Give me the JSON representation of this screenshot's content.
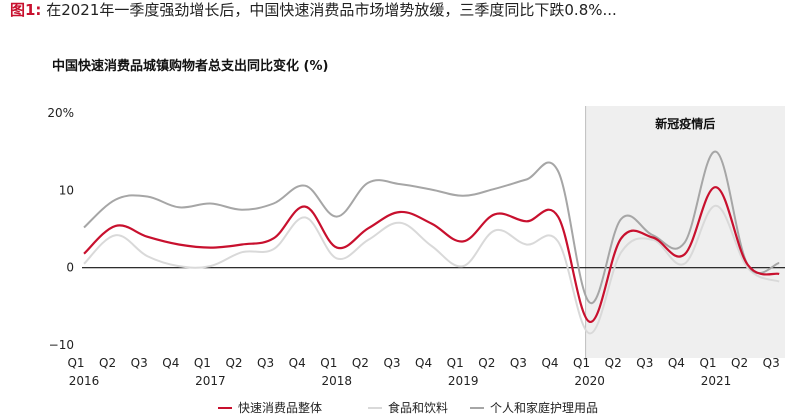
{
  "figure": {
    "label": "图1:",
    "text": " 在2021年一季度强劲增长后，中国快速消费品市场增势放缓，三季度同比下跌0.8%..."
  },
  "chart_data": {
    "type": "line",
    "title": "中国快速消费品城镇购物者总支出同比变化 (%)",
    "xlabel": "",
    "ylabel": "",
    "ylim": [
      -10,
      20
    ],
    "yticks": [
      {
        "value": 20,
        "label": "20%"
      },
      {
        "value": 10,
        "label": "10"
      },
      {
        "value": 0,
        "label": "0"
      },
      {
        "value": -10,
        "label": "−10"
      }
    ],
    "categories": [
      "Q1",
      "Q2",
      "Q3",
      "Q4",
      "Q1",
      "Q2",
      "Q3",
      "Q4",
      "Q1",
      "Q2",
      "Q3",
      "Q4",
      "Q1",
      "Q2",
      "Q3",
      "Q4",
      "Q1",
      "Q2",
      "Q3",
      "Q4",
      "Q1",
      "Q2",
      "Q3"
    ],
    "years": [
      {
        "label": "2016",
        "index": 0
      },
      {
        "label": "2017",
        "index": 4
      },
      {
        "label": "2018",
        "index": 8
      },
      {
        "label": "2019",
        "index": 12
      },
      {
        "label": "2020",
        "index": 16
      },
      {
        "label": "2021",
        "index": 20
      }
    ],
    "series": [
      {
        "name": "快速消费品整体",
        "color": "#c8102e",
        "values": [
          1.8,
          5.4,
          4.0,
          3.0,
          2.6,
          3.0,
          3.8,
          7.9,
          2.6,
          5.1,
          7.2,
          5.7,
          3.4,
          6.9,
          6.0,
          6.6,
          -7.0,
          3.8,
          3.9,
          1.7,
          10.4,
          0.4,
          -0.8
        ]
      },
      {
        "name": "食品和饮料",
        "color": "#d9d9d9",
        "values": [
          0.5,
          4.2,
          1.5,
          0.2,
          0.2,
          2.0,
          2.4,
          6.5,
          1.2,
          3.6,
          5.8,
          2.8,
          0.2,
          4.8,
          3.0,
          3.4,
          -8.5,
          2.0,
          3.6,
          0.5,
          8.0,
          0.0,
          -1.8
        ]
      },
      {
        "name": "个人和家庭护理用品",
        "color": "#a6a6a6",
        "values": [
          5.2,
          8.8,
          9.2,
          7.8,
          8.3,
          7.5,
          8.3,
          10.6,
          6.6,
          11.0,
          10.8,
          10.1,
          9.3,
          10.2,
          11.4,
          12.5,
          -4.5,
          6.3,
          4.2,
          3.2,
          15.0,
          0.4,
          0.6
        ]
      }
    ],
    "shade": {
      "from_index": 16,
      "to_index": 22,
      "label": "新冠疫情后"
    },
    "legend_position": "bottom",
    "grid": false
  }
}
